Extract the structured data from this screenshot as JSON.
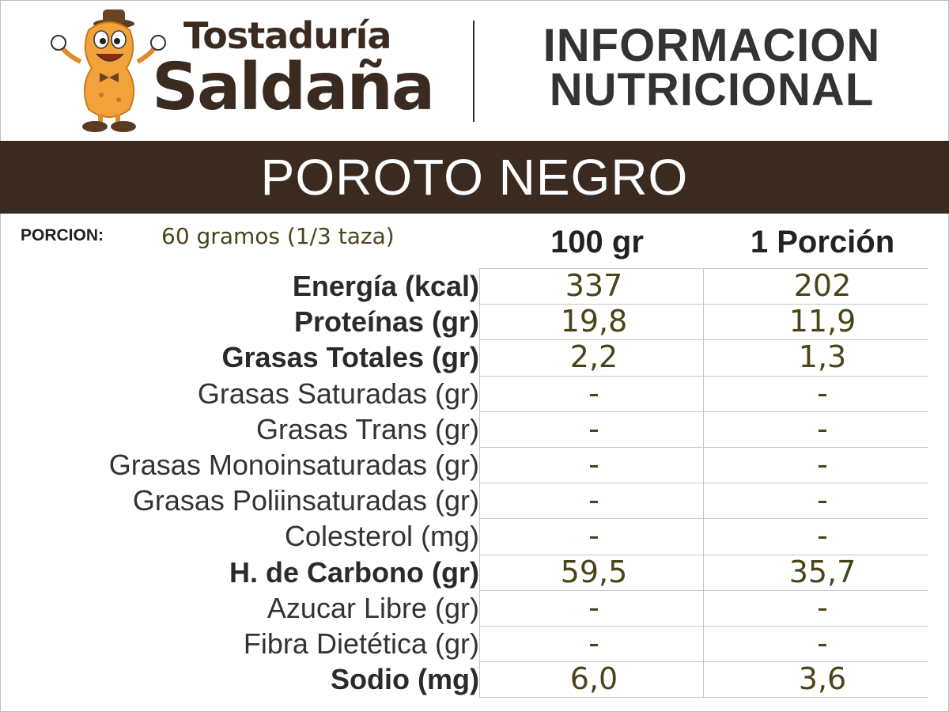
{
  "brand": {
    "line1": "Tostaduría",
    "line2": "Saldaña"
  },
  "header": {
    "title_line1": "INFORMACION",
    "title_line2": "NUTRICIONAL"
  },
  "product": {
    "name": "POROTO NEGRO"
  },
  "portion": {
    "label": "PORCION:",
    "value": "60 gramos (1/3 taza)"
  },
  "columns": [
    "100 gr",
    "1 Porción"
  ],
  "rows": [
    {
      "label": "Energía (kcal)",
      "bold": true,
      "v100": "337",
      "vportion": "202"
    },
    {
      "label": "Proteínas (gr)",
      "bold": true,
      "v100": "19,8",
      "vportion": "11,9"
    },
    {
      "label": "Grasas Totales (gr)",
      "bold": true,
      "v100": "2,2",
      "vportion": "1,3"
    },
    {
      "label": "Grasas Saturadas (gr)",
      "bold": false,
      "v100": "-",
      "vportion": "-"
    },
    {
      "label": "Grasas Trans (gr)",
      "bold": false,
      "v100": "-",
      "vportion": "-"
    },
    {
      "label": "Grasas Monoinsaturadas (gr)",
      "bold": false,
      "v100": "-",
      "vportion": "-"
    },
    {
      "label": "Grasas Poliinsaturadas (gr)",
      "bold": false,
      "v100": "-",
      "vportion": "-"
    },
    {
      "label": "Colesterol (mg)",
      "bold": false,
      "v100": "-",
      "vportion": "-"
    },
    {
      "label": "H. de Carbono (gr)",
      "bold": true,
      "v100": "59,5",
      "vportion": "35,7"
    },
    {
      "label": "Azucar Libre (gr)",
      "bold": false,
      "v100": "-",
      "vportion": "-"
    },
    {
      "label": "Fibra Dietética (gr)",
      "bold": false,
      "v100": "-",
      "vportion": "-"
    },
    {
      "label": "Sodio (mg)",
      "bold": true,
      "v100": "6,0",
      "vportion": "3,6"
    }
  ],
  "colors": {
    "brand_brown": "#3b2a1f",
    "value_olive": "#4b4418",
    "mascot_orange": "#f2a23a"
  },
  "icons": {
    "mascot": "peanut-mascot-icon"
  }
}
